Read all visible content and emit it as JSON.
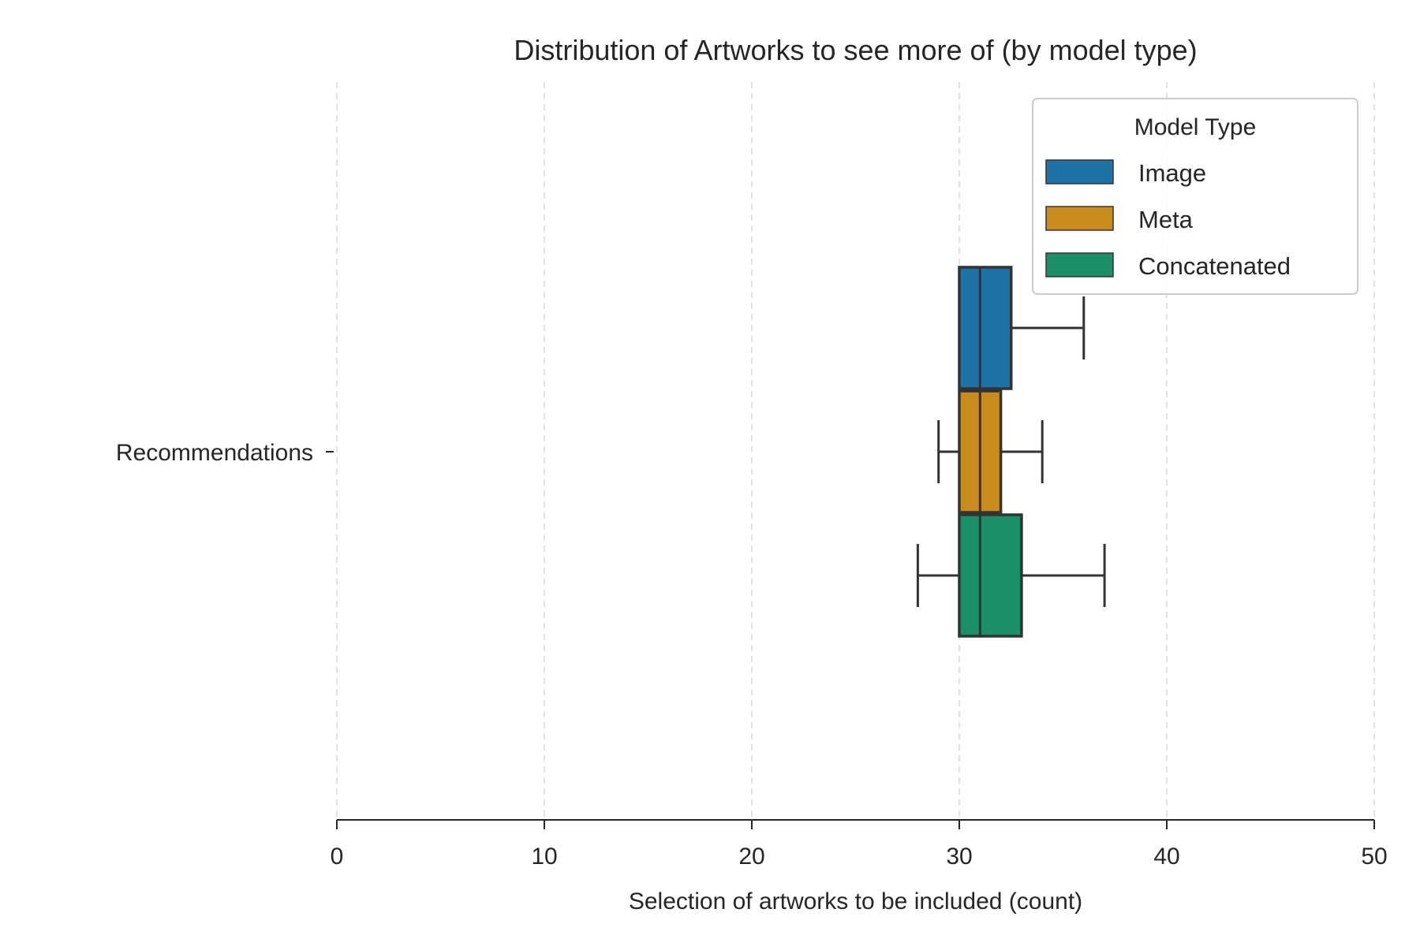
{
  "chart_data": {
    "type": "box",
    "orientation": "horizontal",
    "title": "Distribution of Artworks to see more of (by model type)",
    "xlabel": "Selection of artworks to be included (count)",
    "ylabel": "",
    "xlim": [
      0,
      50
    ],
    "xticks": [
      0,
      10,
      20,
      30,
      40,
      50
    ],
    "xtick_labels": [
      "0",
      "10",
      "20",
      "30",
      "40",
      "50"
    ],
    "categories": [
      "Recommendations"
    ],
    "grid": {
      "x": true,
      "y": false,
      "style": "dashed"
    },
    "legend": {
      "title": "Model Type",
      "placement": "top-right"
    },
    "series": [
      {
        "name": "Image",
        "color": "#1f72a8",
        "whisker_low": 30,
        "q1": 30,
        "median": 31,
        "q3": 32.5,
        "whisker_high": 36
      },
      {
        "name": "Meta",
        "color": "#c98a1e",
        "whisker_low": 29,
        "q1": 30,
        "median": 31,
        "q3": 32,
        "whisker_high": 34
      },
      {
        "name": "Concatenated",
        "color": "#1a8f6a",
        "whisker_low": 28,
        "q1": 30,
        "median": 31,
        "q3": 33,
        "whisker_high": 37
      }
    ]
  }
}
